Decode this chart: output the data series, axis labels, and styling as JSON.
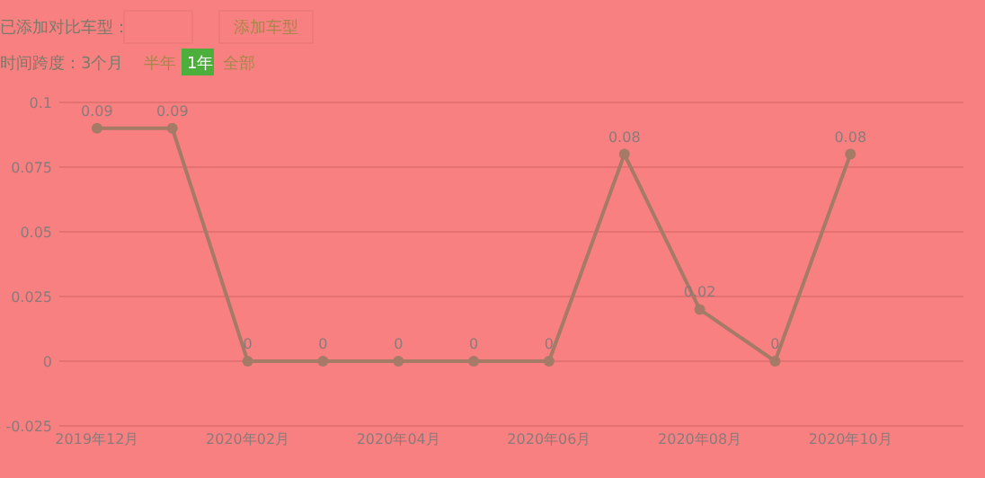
{
  "chart_data": {
    "type": "line",
    "categories": [
      "2019年12月",
      null,
      "2020年02月",
      null,
      "2020年04月",
      null,
      "2020年06月",
      null,
      "2020年08月",
      null,
      "2020年10月",
      null
    ],
    "series": [
      {
        "color": "#a57a66",
        "values": [
          0.09,
          0.09,
          0,
          0,
          0,
          0,
          0,
          0.08,
          0.02,
          0,
          0.08,
          null
        ]
      }
    ],
    "ylim": [
      -0.025,
      0.1
    ],
    "yticks": [
      -0.025,
      0,
      0.025,
      0.05,
      0.075,
      0.1
    ],
    "grid": "y",
    "marker": "circle",
    "data_labels": true,
    "annotations": [
      "已添加对比车型：",
      "添加车型",
      "时间跨度：3个月",
      "半年",
      "1年",
      "全部"
    ]
  }
}
